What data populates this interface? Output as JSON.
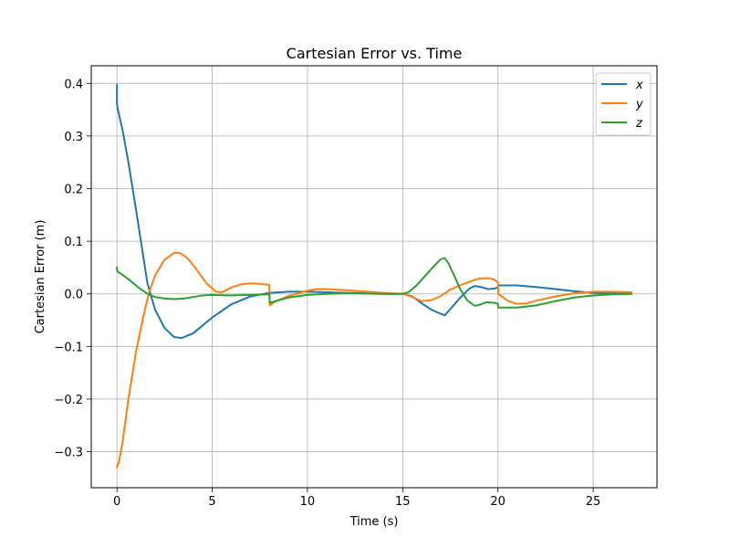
{
  "chart_data": {
    "type": "line",
    "title": "Cartesian Error vs. Time",
    "xlabel": "Time (s)",
    "ylabel": "Cartesian Error (m)",
    "xlim": [
      -1.35,
      28.35
    ],
    "ylim": [
      -0.3685,
      0.4335
    ],
    "xticks": [
      0,
      5,
      10,
      15,
      20,
      25
    ],
    "xtick_labels": [
      "0",
      "5",
      "10",
      "15",
      "20",
      "25"
    ],
    "yticks": [
      -0.3,
      -0.2,
      -0.1,
      0.0,
      0.1,
      0.2,
      0.3,
      0.4
    ],
    "ytick_labels": [
      "−0.3",
      "−0.2",
      "−0.1",
      "0.0",
      "0.1",
      "0.2",
      "0.3",
      "0.4"
    ],
    "grid": true,
    "legend_position": "top-right",
    "series": [
      {
        "name": "x",
        "color": "#1f77b4",
        "points": [
          [
            0,
            0.397
          ],
          [
            0,
            0.36
          ],
          [
            0.05,
            0.35
          ],
          [
            0.3,
            0.31
          ],
          [
            0.6,
            0.25
          ],
          [
            1.0,
            0.16
          ],
          [
            1.3,
            0.09
          ],
          [
            1.6,
            0.02
          ],
          [
            2.0,
            -0.03
          ],
          [
            2.5,
            -0.065
          ],
          [
            3.0,
            -0.082
          ],
          [
            3.4,
            -0.084
          ],
          [
            4.0,
            -0.075
          ],
          [
            5.0,
            -0.045
          ],
          [
            6.0,
            -0.02
          ],
          [
            7.0,
            -0.005
          ],
          [
            8.0,
            0.002
          ],
          [
            9.0,
            0.004
          ],
          [
            10.0,
            0.004
          ],
          [
            12.0,
            0.002
          ],
          [
            14.0,
            0.0
          ],
          [
            15.0,
            0.0
          ],
          [
            15.5,
            -0.005
          ],
          [
            16.0,
            -0.018
          ],
          [
            16.5,
            -0.03
          ],
          [
            17.0,
            -0.038
          ],
          [
            17.2,
            -0.041
          ],
          [
            17.6,
            -0.025
          ],
          [
            18.0,
            -0.008
          ],
          [
            18.5,
            0.01
          ],
          [
            18.8,
            0.015
          ],
          [
            19.1,
            0.013
          ],
          [
            19.5,
            0.009
          ],
          [
            19.8,
            0.01
          ],
          [
            20.0,
            0.012
          ],
          [
            20.02,
            0.016
          ],
          [
            21.0,
            0.016
          ],
          [
            22.0,
            0.013
          ],
          [
            23.0,
            0.009
          ],
          [
            24.0,
            0.005
          ],
          [
            25.0,
            0.002
          ],
          [
            26.0,
            0.001
          ],
          [
            27.0,
            0.0
          ]
        ]
      },
      {
        "name": "y",
        "color": "#ff7f0e",
        "points": [
          [
            0,
            -0.33
          ],
          [
            0.1,
            -0.32
          ],
          [
            0.3,
            -0.28
          ],
          [
            0.6,
            -0.2
          ],
          [
            1.0,
            -0.11
          ],
          [
            1.4,
            -0.04
          ],
          [
            1.7,
            0.005
          ],
          [
            2.0,
            0.035
          ],
          [
            2.5,
            0.065
          ],
          [
            3.0,
            0.078
          ],
          [
            3.3,
            0.078
          ],
          [
            3.7,
            0.068
          ],
          [
            4.2,
            0.045
          ],
          [
            4.7,
            0.02
          ],
          [
            5.2,
            0.004
          ],
          [
            5.5,
            0.003
          ],
          [
            6.0,
            0.012
          ],
          [
            6.5,
            0.018
          ],
          [
            7.0,
            0.02
          ],
          [
            7.5,
            0.019
          ],
          [
            8.0,
            0.017
          ],
          [
            8.02,
            -0.022
          ],
          [
            8.3,
            -0.015
          ],
          [
            9.0,
            -0.004
          ],
          [
            10.0,
            0.006
          ],
          [
            10.5,
            0.009
          ],
          [
            11.0,
            0.009
          ],
          [
            12.0,
            0.007
          ],
          [
            14.0,
            0.002
          ],
          [
            15.0,
            0.0
          ],
          [
            15.5,
            -0.006
          ],
          [
            16.0,
            -0.014
          ],
          [
            16.5,
            -0.012
          ],
          [
            17.0,
            -0.004
          ],
          [
            17.5,
            0.008
          ],
          [
            18.0,
            0.016
          ],
          [
            18.5,
            0.023
          ],
          [
            19.0,
            0.029
          ],
          [
            19.5,
            0.03
          ],
          [
            19.8,
            0.027
          ],
          [
            20.0,
            0.022
          ],
          [
            20.02,
            0.0
          ],
          [
            20.5,
            -0.013
          ],
          [
            21.0,
            -0.019
          ],
          [
            21.5,
            -0.018
          ],
          [
            22.0,
            -0.013
          ],
          [
            23.0,
            -0.005
          ],
          [
            24.0,
            0.001
          ],
          [
            25.0,
            0.004
          ],
          [
            26.0,
            0.004
          ],
          [
            27.0,
            0.003
          ]
        ]
      },
      {
        "name": "z",
        "color": "#2ca02c",
        "points": [
          [
            0,
            0.05
          ],
          [
            0,
            0.045
          ],
          [
            0.05,
            0.042
          ],
          [
            0.3,
            0.036
          ],
          [
            0.7,
            0.025
          ],
          [
            1.2,
            0.01
          ],
          [
            1.6,
            0.0
          ],
          [
            2.0,
            -0.006
          ],
          [
            2.5,
            -0.009
          ],
          [
            3.0,
            -0.01
          ],
          [
            3.5,
            -0.009
          ],
          [
            4.0,
            -0.006
          ],
          [
            4.5,
            -0.003
          ],
          [
            5.0,
            -0.002
          ],
          [
            6.0,
            -0.003
          ],
          [
            7.0,
            -0.002
          ],
          [
            7.9,
            -0.001
          ],
          [
            8.0,
            -0.001
          ],
          [
            8.02,
            -0.017
          ],
          [
            8.5,
            -0.012
          ],
          [
            9.0,
            -0.007
          ],
          [
            10.0,
            -0.002
          ],
          [
            11.0,
            0.0
          ],
          [
            12.0,
            0.001
          ],
          [
            14.0,
            0.0
          ],
          [
            15.0,
            0.0
          ],
          [
            15.3,
            0.003
          ],
          [
            15.7,
            0.015
          ],
          [
            16.2,
            0.035
          ],
          [
            16.7,
            0.055
          ],
          [
            17.0,
            0.066
          ],
          [
            17.2,
            0.068
          ],
          [
            17.4,
            0.058
          ],
          [
            17.7,
            0.035
          ],
          [
            18.0,
            0.01
          ],
          [
            18.4,
            -0.013
          ],
          [
            18.8,
            -0.023
          ],
          [
            19.1,
            -0.02
          ],
          [
            19.4,
            -0.016
          ],
          [
            19.8,
            -0.017
          ],
          [
            20.0,
            -0.019
          ],
          [
            20.02,
            -0.026
          ],
          [
            21.0,
            -0.026
          ],
          [
            22.0,
            -0.022
          ],
          [
            23.0,
            -0.014
          ],
          [
            24.0,
            -0.007
          ],
          [
            25.0,
            -0.003
          ],
          [
            26.0,
            -0.001
          ],
          [
            27.0,
            0.0
          ]
        ]
      }
    ]
  }
}
